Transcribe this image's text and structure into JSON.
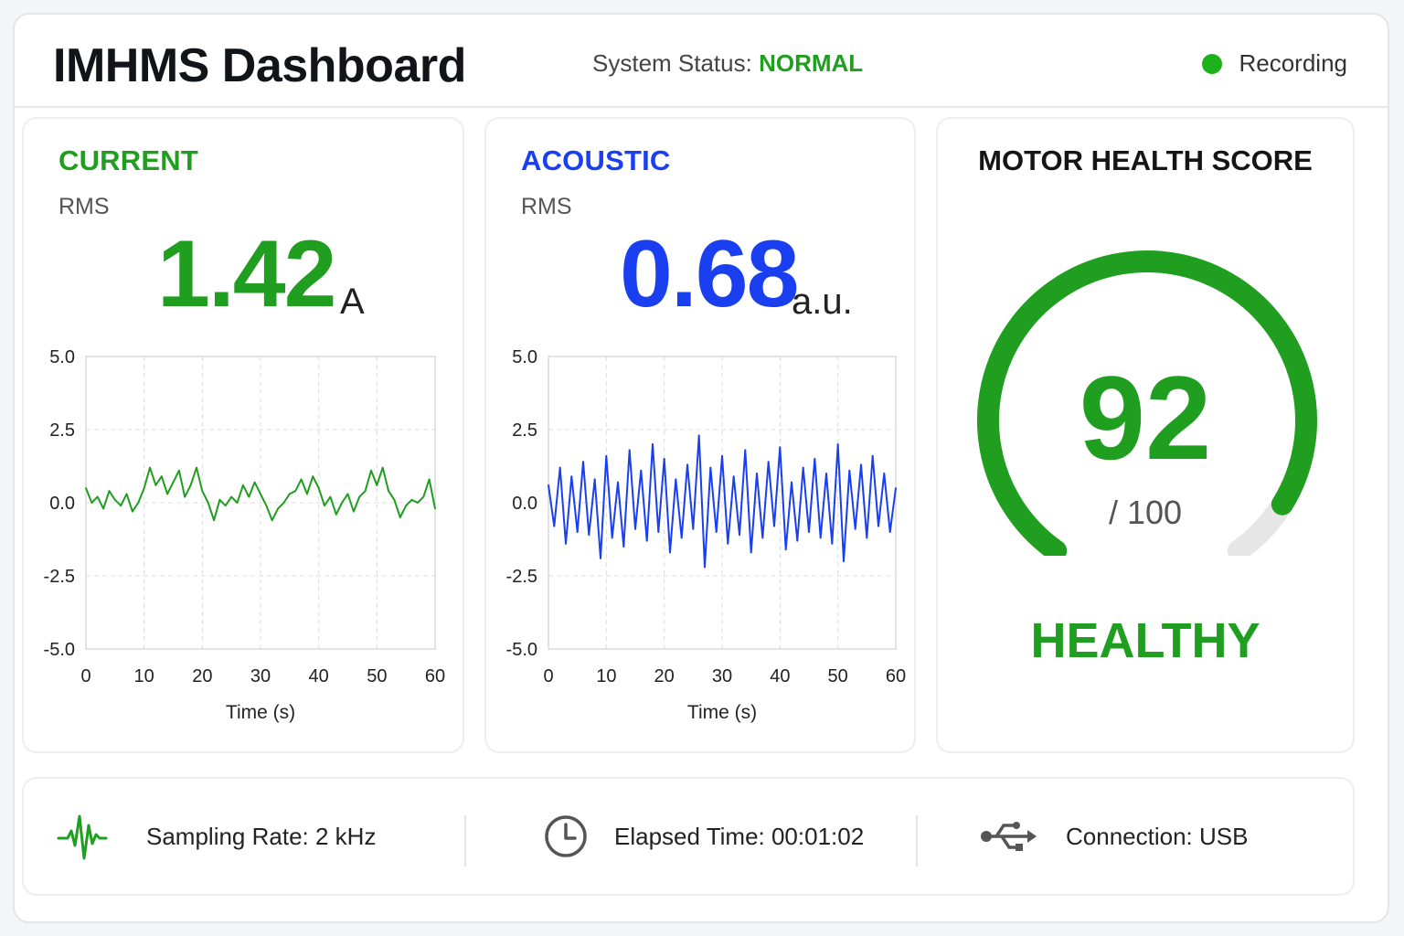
{
  "header": {
    "title": "IMHMS Dashboard",
    "status_label": "System Status:",
    "status_value": "NORMAL",
    "recording_label": "Recording"
  },
  "colors": {
    "green": "#1f9e1f",
    "blue": "#1a3ff0",
    "track": "#e6e6e6"
  },
  "current": {
    "title": "CURRENT",
    "metric_label": "RMS",
    "value": "1.42",
    "unit": "A"
  },
  "acoustic": {
    "title": "ACOUSTIC",
    "metric_label": "RMS",
    "value": "0.68",
    "unit": "a.u."
  },
  "health": {
    "title": "MOTOR HEALTH SCORE",
    "score": "92",
    "max_label": "/ 100",
    "score_fraction": 0.92,
    "status": "HEALTHY"
  },
  "footer": {
    "sampling_rate": "Sampling Rate: 2 kHz",
    "elapsed_time": "Elapsed Time: 00:01:02",
    "connection": "Connection:  USB",
    "icons": [
      "waveform-icon",
      "clock-icon",
      "usb-icon"
    ]
  },
  "chart_data": [
    {
      "type": "line",
      "series": [
        {
          "color": "#1f9e1f",
          "x": [
            0,
            1,
            2,
            3,
            4,
            5,
            6,
            7,
            8,
            9,
            10,
            11,
            12,
            13,
            14,
            15,
            16,
            17,
            18,
            19,
            20,
            21,
            22,
            23,
            24,
            25,
            26,
            27,
            28,
            29,
            30,
            31,
            32,
            33,
            34,
            35,
            36,
            37,
            38,
            39,
            40,
            41,
            42,
            43,
            44,
            45,
            46,
            47,
            48,
            49,
            50,
            51,
            52,
            53,
            54,
            55,
            56,
            57,
            58,
            59,
            60
          ],
          "y": [
            0.5,
            0.0,
            0.2,
            -0.2,
            0.4,
            0.1,
            -0.1,
            0.3,
            -0.3,
            0.0,
            0.5,
            1.2,
            0.6,
            0.9,
            0.3,
            0.7,
            1.1,
            0.2,
            0.6,
            1.2,
            0.4,
            0.0,
            -0.6,
            0.1,
            -0.1,
            0.2,
            0.0,
            0.6,
            0.2,
            0.7,
            0.3,
            -0.1,
            -0.6,
            -0.2,
            0.0,
            0.3,
            0.4,
            0.8,
            0.3,
            0.9,
            0.5,
            -0.1,
            0.2,
            -0.4,
            0.0,
            0.3,
            -0.3,
            0.2,
            0.4,
            1.1,
            0.6,
            1.2,
            0.4,
            0.1,
            -0.5,
            -0.1,
            0.1,
            0.0,
            0.2,
            0.8,
            -0.2
          ]
        }
      ],
      "xlabel": "Time (s)",
      "xticks": [
        "0",
        "10",
        "20",
        "30",
        "40",
        "50",
        "60"
      ],
      "yticks": [
        "5.0",
        "2.5",
        "0.0",
        "-2.5",
        "-5.0"
      ],
      "xlim": [
        0,
        60
      ],
      "ylim": [
        -5,
        5
      ],
      "grid": true
    },
    {
      "type": "line",
      "series": [
        {
          "color": "#1a3ff0",
          "x": [
            0,
            1,
            2,
            3,
            4,
            5,
            6,
            7,
            8,
            9,
            10,
            11,
            12,
            13,
            14,
            15,
            16,
            17,
            18,
            19,
            20,
            21,
            22,
            23,
            24,
            25,
            26,
            27,
            28,
            29,
            30,
            31,
            32,
            33,
            34,
            35,
            36,
            37,
            38,
            39,
            40,
            41,
            42,
            43,
            44,
            45,
            46,
            47,
            48,
            49,
            50,
            51,
            52,
            53,
            54,
            55,
            56,
            57,
            58,
            59,
            60
          ],
          "y": [
            0.6,
            -0.8,
            1.2,
            -1.4,
            0.9,
            -1.0,
            1.4,
            -1.1,
            0.8,
            -1.9,
            1.6,
            -1.2,
            0.7,
            -1.5,
            1.8,
            -0.9,
            1.1,
            -1.3,
            2.0,
            -1.0,
            1.5,
            -1.7,
            0.8,
            -1.2,
            1.3,
            -0.9,
            2.3,
            -2.2,
            1.2,
            -1.0,
            1.6,
            -1.4,
            0.9,
            -1.1,
            1.8,
            -1.7,
            1.0,
            -1.2,
            1.4,
            -0.8,
            1.9,
            -1.6,
            0.7,
            -1.3,
            1.2,
            -1.0,
            1.5,
            -1.2,
            1.0,
            -1.4,
            2.0,
            -2.0,
            1.1,
            -0.9,
            1.3,
            -1.2,
            1.6,
            -0.8,
            1.0,
            -1.0,
            0.5
          ]
        }
      ],
      "xlabel": "Time (s)",
      "xticks": [
        "0",
        "10",
        "20",
        "30",
        "40",
        "50",
        "60"
      ],
      "yticks": [
        "5.0",
        "2.5",
        "0.0",
        "-2.5",
        "-5.0"
      ],
      "xlim": [
        0,
        60
      ],
      "ylim": [
        -5,
        5
      ],
      "grid": true
    }
  ]
}
